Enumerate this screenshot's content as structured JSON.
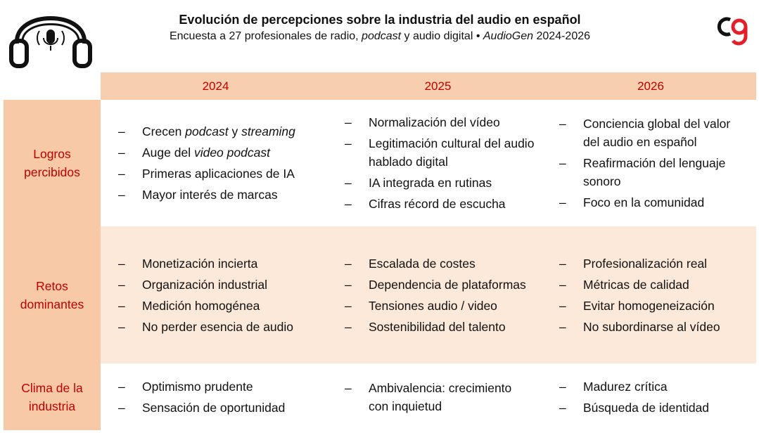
{
  "header": {
    "title": "Evolución de percepciones sobre la industria del audio en español",
    "subtitle": [
      "Encuesta a 27 profesionales de radio, ",
      {
        "italic": "podcast"
      },
      " y audio digital • ",
      {
        "italic": "AudioGen"
      },
      " 2024-2026"
    ]
  },
  "table": {
    "columns": [
      "2024",
      "2025",
      "2026"
    ],
    "rows": [
      {
        "label": "Logros percibidos",
        "cells": [
          [
            [
              "Crecen ",
              {
                "italic": "podcast"
              },
              " y ",
              {
                "italic": "streaming"
              }
            ],
            [
              "Auge del ",
              {
                "italic": "video podcast"
              }
            ],
            [
              "Primeras aplicaciones de IA"
            ],
            [
              "Mayor interés de marcas"
            ]
          ],
          [
            [
              "Normalización del vídeo"
            ],
            [
              "Legitimación cultural del audio hablado digital"
            ],
            [
              "IA integrada en rutinas"
            ],
            [
              "Cifras récord de escucha"
            ]
          ],
          [
            [
              "Conciencia global del valor del audio en español"
            ],
            [
              "Reafirmación del lenguaje sonoro"
            ],
            [
              "Foco en la comunidad"
            ]
          ]
        ]
      },
      {
        "label": "Retos dominantes",
        "cells": [
          [
            [
              "Monetización incierta"
            ],
            [
              "Organización industrial"
            ],
            [
              "Medición homogénea"
            ],
            [
              "No perder esencia de audio"
            ]
          ],
          [
            [
              "Escalada de costes"
            ],
            [
              "Dependencia de plataformas"
            ],
            [
              "Tensiones audio / video"
            ],
            [
              "Sostenibilidad del talento"
            ]
          ],
          [
            [
              "Profesionalización real"
            ],
            [
              "Métricas de calidad"
            ],
            [
              "Evitar homogeneización"
            ],
            [
              "No subordinarse al vídeo"
            ]
          ]
        ]
      },
      {
        "label": "Clima de la industria",
        "cells": [
          [
            [
              "Optimismo prudente"
            ],
            [
              "Sensación de oportunidad"
            ]
          ],
          [
            [
              "Ambivalencia: crecimiento con inquietud"
            ]
          ],
          [
            [
              "Madurez crítica"
            ],
            [
              "Búsqueda de identidad"
            ]
          ]
        ]
      }
    ]
  }
}
